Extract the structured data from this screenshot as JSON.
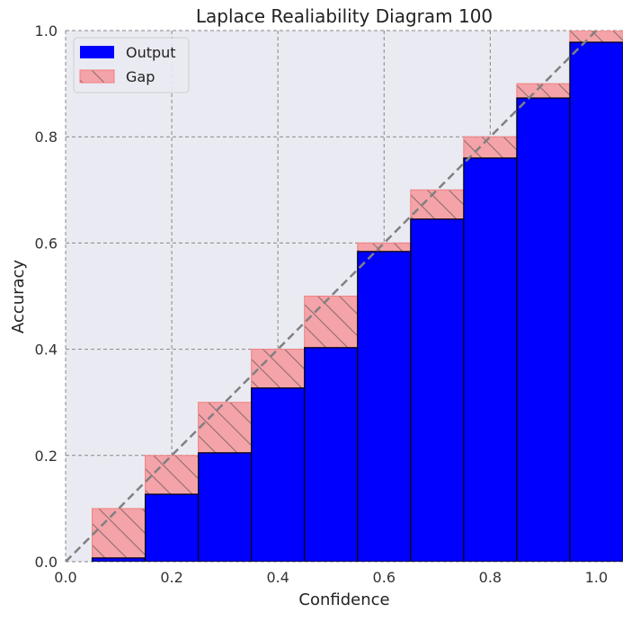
{
  "chart_data": {
    "type": "bar",
    "title": "Laplace Realiability Diagram 100",
    "xlabel": "Confidence",
    "ylabel": "Accuracy",
    "xlim": [
      0.0,
      1.05
    ],
    "ylim": [
      0.0,
      1.0
    ],
    "bin_width": 0.1,
    "bins": [
      0.1,
      0.2,
      0.3,
      0.4,
      0.5,
      0.6,
      0.7,
      0.8,
      0.9,
      1.0
    ],
    "series": [
      {
        "name": "Output",
        "color": "#0000ff",
        "values": [
          0.007,
          0.127,
          0.205,
          0.327,
          0.403,
          0.584,
          0.645,
          0.76,
          0.873,
          0.978
        ]
      },
      {
        "name": "Gap",
        "color": "#f4a3a8",
        "hatch": "\\\\",
        "values": [
          0.1,
          0.2,
          0.3,
          0.4,
          0.5,
          0.6,
          0.7,
          0.8,
          0.9,
          1.0
        ]
      }
    ],
    "x_ticks": [
      "0.0",
      "0.2",
      "0.4",
      "0.6",
      "0.8",
      "1.0"
    ],
    "y_ticks": [
      "0.0",
      "0.2",
      "0.4",
      "0.6",
      "0.8",
      "1.0"
    ],
    "diagonal": {
      "from": [
        0,
        0
      ],
      "to": [
        1,
        1
      ],
      "style": "dashed",
      "color": "#808080"
    },
    "grid": true,
    "legend_position": "top-left",
    "background_color": "#eaeaf2"
  },
  "legend": {
    "output_label": "Output",
    "gap_label": "Gap"
  }
}
